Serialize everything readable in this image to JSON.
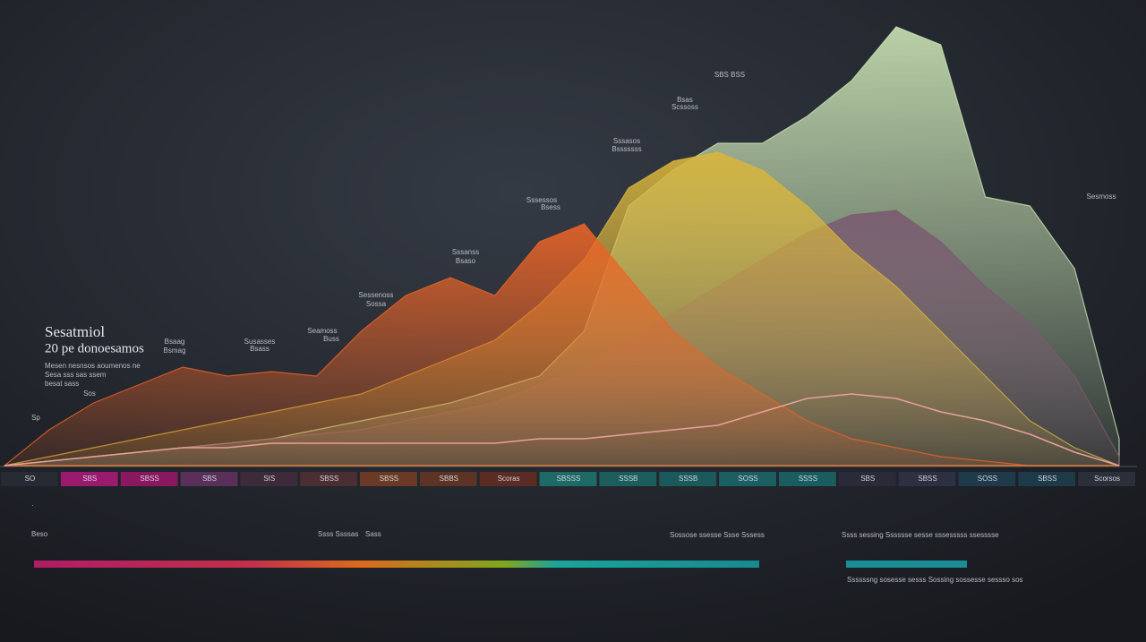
{
  "chart_data": {
    "type": "area",
    "title": "Sesatmiol",
    "subtitle": "20 pe donoesamos",
    "note": [
      "Mesen nesnsos aoumenos ne",
      "Sesa sss sas ssem",
      "besat sass"
    ],
    "categories": [
      null,
      null,
      null,
      null,
      null,
      null,
      null,
      null,
      null,
      null,
      null,
      null,
      null,
      null,
      null,
      null,
      null,
      null,
      null,
      null,
      null,
      null,
      null,
      null,
      null,
      null
    ],
    "ylim": [
      0,
      100
    ],
    "series": [
      {
        "color": "#c9e3b4",
        "fill": true,
        "values": [
          0,
          1,
          2,
          3,
          4,
          5,
          6,
          8,
          10,
          12,
          14,
          17,
          20,
          30,
          58,
          66,
          72,
          72,
          78,
          86,
          98,
          94,
          60,
          58,
          44,
          6
        ]
      },
      {
        "color": "#7a5a70",
        "fill": true,
        "values": [
          0,
          1,
          2,
          3,
          4,
          5,
          6,
          7,
          8,
          10,
          12,
          14,
          18,
          22,
          28,
          34,
          40,
          46,
          52,
          56,
          57,
          50,
          40,
          32,
          20,
          2
        ]
      },
      {
        "color": "#d9b53c",
        "fill": true,
        "values": [
          0,
          2,
          4,
          6,
          8,
          10,
          12,
          14,
          16,
          20,
          24,
          28,
          36,
          46,
          62,
          68,
          70,
          66,
          58,
          48,
          40,
          30,
          20,
          10,
          4,
          0
        ]
      },
      {
        "color": "#ea6427",
        "fill": true,
        "values": [
          0,
          8,
          14,
          18,
          22,
          20,
          21,
          20,
          30,
          38,
          42,
          38,
          50,
          54,
          42,
          30,
          22,
          16,
          10,
          6,
          4,
          2,
          1,
          0,
          0,
          0
        ]
      },
      {
        "color": "#e8a09c",
        "fill": false,
        "values": [
          0,
          1,
          2,
          3,
          4,
          4,
          5,
          5,
          5,
          5,
          5,
          5,
          6,
          6,
          7,
          8,
          9,
          12,
          15,
          16,
          15,
          12,
          10,
          7,
          3,
          0
        ]
      }
    ],
    "annotations": [
      "Sp",
      "Sos",
      "Bsaag",
      "Bsmag",
      "Susasses",
      "Bsass",
      "Seamoss",
      "Buss",
      "Sessenoss",
      "Sossa",
      "Sssanss",
      "Bsaso",
      "Sssessos",
      "Bsess",
      "Sssasos",
      "Bsssssss",
      "Bsas",
      "Scssoss",
      "SBS BSS",
      "Sesmoss"
    ],
    "bands": [
      "SO",
      "SBS",
      "SBSS",
      "SBS",
      "SIS",
      "SBSS",
      "SBSS",
      "SBBS",
      "Scoras",
      "SBSSS",
      "SSSB",
      "SSSB",
      "SOSS",
      "SSSS",
      "SBS",
      "SBSS",
      "SOSS",
      "SBSS",
      "Scorsos"
    ],
    "footer_labels": [
      "Beso",
      "Ssss Ssssas",
      "Sass",
      "Sossose ssesse Ssse Sssess",
      "Ssss sessing Sssssse sesse sssesssss ssesssse",
      "Ssssssng sosesse sesss Sossing sossesse sessso sos"
    ]
  }
}
